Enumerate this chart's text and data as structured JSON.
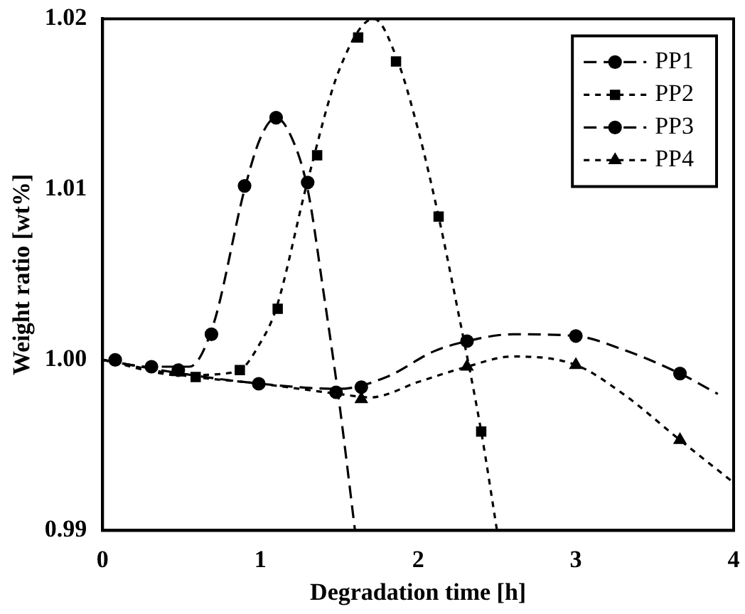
{
  "chart_data": {
    "type": "scatter",
    "xlabel": "Degradation time [h]",
    "ylabel": "Weight ratio [wt%]",
    "xlim": [
      0,
      4
    ],
    "xticks": [
      0,
      1,
      2,
      3,
      4
    ],
    "ylim": [
      0.99,
      1.02
    ],
    "yticks": [
      {
        "value": 0.99,
        "label": "0.99"
      },
      {
        "value": 1.0,
        "label": "1.00"
      },
      {
        "value": 1.01,
        "label": "1.01"
      },
      {
        "value": 1.02,
        "label": "1.02"
      }
    ],
    "grid": false,
    "legend": "top right",
    "series": [
      {
        "name": "PP1",
        "marker": "circle",
        "line_style": "dashed",
        "color": "#000000",
        "x": [
          0.31,
          0.48,
          0.69,
          0.9,
          1.1,
          1.3,
          1.48
        ],
        "values": [
          0.9996,
          0.9994,
          1.0015,
          1.0102,
          1.0142,
          1.0104,
          0.9981
        ]
      },
      {
        "name": "PP2",
        "marker": "square",
        "line_style": "dotted",
        "color": "#000000",
        "x": [
          0.59,
          0.87,
          1.11,
          1.36,
          1.62,
          1.86,
          2.13,
          2.4
        ],
        "values": [
          0.999,
          0.9994,
          1.003,
          1.012,
          1.0189,
          1.0175,
          1.0084,
          0.9958
        ]
      },
      {
        "name": "PP3",
        "marker": "circle",
        "line_style": "dashed",
        "color": "#000000",
        "x": [
          0.08,
          0.99,
          1.64,
          2.31,
          3.0,
          3.66
        ],
        "values": [
          1.0,
          0.9986,
          0.9984,
          1.0011,
          1.0014,
          0.9992
        ]
      },
      {
        "name": "PP4",
        "marker": "triangle",
        "line_style": "dotted",
        "color": "#000000",
        "x": [
          1.64,
          2.31,
          3.0,
          3.66
        ],
        "values": [
          0.9977,
          0.9996,
          0.9997,
          0.9953
        ]
      },
      {
        "type": "line",
        "marker": "none",
        "line_style": "dashed",
        "color": "#000000",
        "x": [
          0,
          0.3,
          0.55,
          0.7,
          0.9,
          1.0,
          1.1,
          1.2,
          1.3,
          1.4,
          1.5,
          1.6
        ],
        "values": [
          1.0,
          0.9996,
          0.9996,
          1.002,
          1.01,
          1.013,
          1.0142,
          1.013,
          1.01,
          1.004,
          0.9975,
          0.99
        ]
      },
      {
        "type": "line",
        "marker": "none",
        "line_style": "dotted",
        "color": "#000000",
        "x": [
          0,
          0.5,
          0.85,
          1.0,
          1.1,
          1.3,
          1.5,
          1.72,
          1.86,
          2.0,
          2.13,
          2.25,
          2.4,
          2.5
        ],
        "values": [
          1.0,
          0.9991,
          0.9993,
          1.001,
          1.003,
          1.0105,
          1.017,
          1.02,
          1.0178,
          1.0135,
          1.0084,
          1.003,
          0.9958,
          0.99
        ]
      },
      {
        "type": "line",
        "marker": "none",
        "line_style": "dashed",
        "color": "#000000",
        "x": [
          0,
          0.5,
          1.0,
          1.5,
          1.8,
          2.1,
          2.31,
          2.6,
          3.0,
          3.3,
          3.66,
          3.9
        ],
        "values": [
          1.0,
          0.9992,
          0.9986,
          0.9983,
          0.999,
          1.0005,
          1.0011,
          1.0015,
          1.0014,
          1.0006,
          0.9992,
          0.998
        ]
      },
      {
        "type": "line",
        "marker": "none",
        "line_style": "dotted",
        "color": "#000000",
        "x": [
          0,
          0.5,
          1.0,
          1.5,
          1.7,
          2.0,
          2.31,
          2.6,
          3.0,
          3.3,
          3.66,
          4.0
        ],
        "values": [
          1.0,
          0.9991,
          0.9986,
          0.998,
          0.9978,
          0.9987,
          0.9996,
          1.0002,
          0.9997,
          0.998,
          0.9953,
          0.9928
        ]
      }
    ]
  }
}
